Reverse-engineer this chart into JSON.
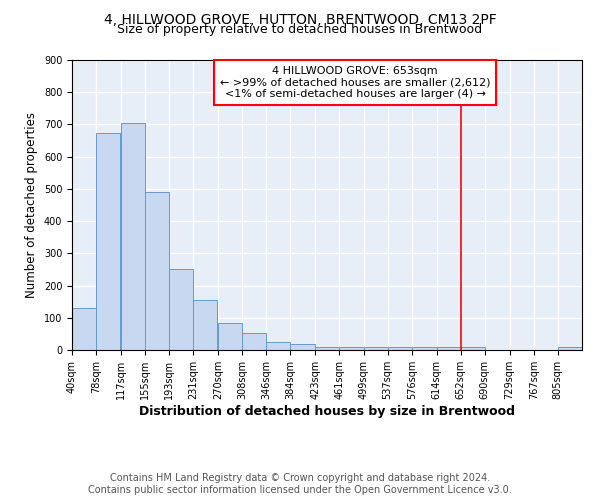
{
  "title": "4, HILLWOOD GROVE, HUTTON, BRENTWOOD, CM13 2PF",
  "subtitle": "Size of property relative to detached houses in Brentwood",
  "xlabel": "Distribution of detached houses by size in Brentwood",
  "ylabel": "Number of detached properties",
  "bar_color": "#c8d8f0",
  "bar_edge_color": "#6699cc",
  "background_color": "#e8eef8",
  "grid_color": "#ffffff",
  "bins": [
    40,
    78,
    117,
    155,
    193,
    231,
    270,
    308,
    346,
    384,
    423,
    461,
    499,
    537,
    576,
    614,
    652,
    690,
    729,
    767,
    805
  ],
  "heights": [
    130,
    675,
    705,
    490,
    250,
    155,
    85,
    52,
    25,
    20,
    10,
    10,
    10,
    8,
    8,
    8,
    8,
    0,
    0,
    0,
    8
  ],
  "red_line_x": 653,
  "annotation_line1": "4 HILLWOOD GROVE: 653sqm",
  "annotation_line2": "← >99% of detached houses are smaller (2,612)",
  "annotation_line3": "<1% of semi-detached houses are larger (4) →",
  "ylim": [
    0,
    900
  ],
  "yticks": [
    0,
    100,
    200,
    300,
    400,
    500,
    600,
    700,
    800,
    900
  ],
  "footer_line1": "Contains HM Land Registry data © Crown copyright and database right 2024.",
  "footer_line2": "Contains public sector information licensed under the Open Government Licence v3.0.",
  "title_fontsize": 10,
  "subtitle_fontsize": 9,
  "xlabel_fontsize": 9,
  "ylabel_fontsize": 8.5,
  "tick_fontsize": 7,
  "annotation_fontsize": 8,
  "footer_fontsize": 7
}
